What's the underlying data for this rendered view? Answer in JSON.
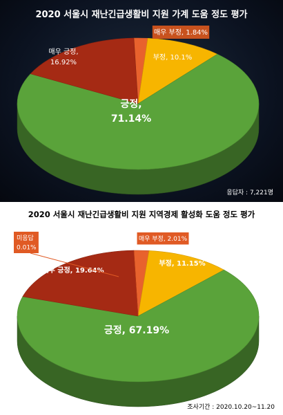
{
  "colors": {
    "very_negative": "#e8622d",
    "negative": "#f7b500",
    "positive": "#5aa33a",
    "very_positive": "#a52a14",
    "no_answer": "#d9441a"
  },
  "chart_data": [
    {
      "type": "pie",
      "title": "2020 서울시 재난긴급생활비 지원 가계 도움 정도 평가",
      "note": "응답자 : 7,221명",
      "slices": [
        {
          "key": "very_negative",
          "label": "매우 부정,",
          "value": 1.84,
          "value_text": "1.84%"
        },
        {
          "key": "negative",
          "label": "부정,",
          "value": 10.1,
          "value_text": "10.1%"
        },
        {
          "key": "positive",
          "label": "긍정,",
          "value": 71.14,
          "value_text": "71.14%"
        },
        {
          "key": "very_positive",
          "label": "매우 긍정,",
          "value": 16.92,
          "value_text": "16.92%"
        }
      ]
    },
    {
      "type": "pie",
      "title": "2020 서울시 재난긴급생활비 지원 지역경제 활성화 도움 정도 평가",
      "note": "조사기간 : 2020.10.20~11.20",
      "slices": [
        {
          "key": "very_negative",
          "label": "매우 부정,",
          "value": 2.01,
          "value_text": "2.01%"
        },
        {
          "key": "negative",
          "label": "부정,",
          "value": 11.15,
          "value_text": "11.15%"
        },
        {
          "key": "positive",
          "label": "긍정,",
          "value": 67.19,
          "value_text": "67.19%"
        },
        {
          "key": "very_positive",
          "label": "매우 긍정,",
          "value": 19.64,
          "value_text": "19.64%"
        },
        {
          "key": "no_answer",
          "label": "미응답",
          "value": 0.01,
          "value_text": "0.01%"
        }
      ]
    }
  ]
}
